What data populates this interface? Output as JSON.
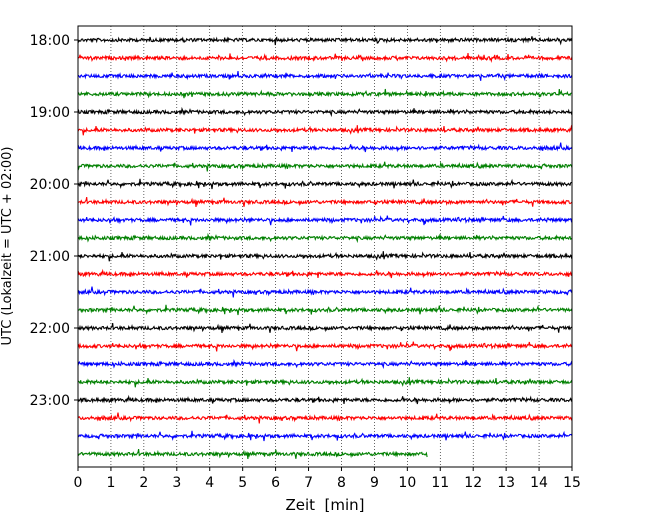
{
  "chart_data": {
    "type": "line",
    "title": "",
    "xlabel": "Zeit  [min]",
    "ylabel": "UTC (Lokalzeit = UTC + 02:00)",
    "xlim": [
      0,
      15
    ],
    "x_ticks": [
      0,
      1,
      2,
      3,
      4,
      5,
      6,
      7,
      8,
      9,
      10,
      11,
      12,
      13,
      14,
      15
    ],
    "y_tick_labels": [
      "18:00",
      "19:00",
      "20:00",
      "21:00",
      "22:00",
      "23:00"
    ],
    "grid": "vertical dotted at each minute",
    "row_interval_min": 15,
    "row_colors": [
      "#000000",
      "#ff0000",
      "#0000ff",
      "#008000"
    ],
    "series": [
      {
        "start": "18:00",
        "end_min": 15,
        "color": "#000000"
      },
      {
        "start": "18:15",
        "end_min": 15,
        "color": "#ff0000"
      },
      {
        "start": "18:30",
        "end_min": 15,
        "color": "#0000ff"
      },
      {
        "start": "18:45",
        "end_min": 15,
        "color": "#008000"
      },
      {
        "start": "19:00",
        "end_min": 15,
        "color": "#000000"
      },
      {
        "start": "19:15",
        "end_min": 15,
        "color": "#ff0000"
      },
      {
        "start": "19:30",
        "end_min": 15,
        "color": "#0000ff"
      },
      {
        "start": "19:45",
        "end_min": 15,
        "color": "#008000"
      },
      {
        "start": "20:00",
        "end_min": 15,
        "color": "#000000"
      },
      {
        "start": "20:15",
        "end_min": 15,
        "color": "#ff0000"
      },
      {
        "start": "20:30",
        "end_min": 15,
        "color": "#0000ff"
      },
      {
        "start": "20:45",
        "end_min": 15,
        "color": "#008000"
      },
      {
        "start": "21:00",
        "end_min": 15,
        "color": "#000000"
      },
      {
        "start": "21:15",
        "end_min": 15,
        "color": "#ff0000"
      },
      {
        "start": "21:30",
        "end_min": 15,
        "color": "#0000ff"
      },
      {
        "start": "21:45",
        "end_min": 15,
        "color": "#008000"
      },
      {
        "start": "22:00",
        "end_min": 15,
        "color": "#000000"
      },
      {
        "start": "22:15",
        "end_min": 15,
        "color": "#ff0000"
      },
      {
        "start": "22:30",
        "end_min": 15,
        "color": "#0000ff"
      },
      {
        "start": "22:45",
        "end_min": 15,
        "color": "#008000"
      },
      {
        "start": "23:00",
        "end_min": 15,
        "color": "#000000"
      },
      {
        "start": "23:15",
        "end_min": 15,
        "color": "#ff0000"
      },
      {
        "start": "23:30",
        "end_min": 15,
        "color": "#0000ff"
      },
      {
        "start": "23:45",
        "end_min": 10.6,
        "color": "#008000"
      }
    ]
  }
}
